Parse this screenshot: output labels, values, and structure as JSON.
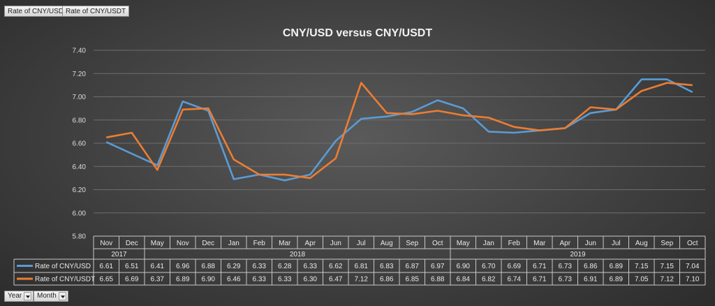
{
  "field_buttons": [
    "Rate of CNY/USD",
    "Rate of CNY/USDT"
  ],
  "axis_buttons": [
    "Year",
    "Month"
  ],
  "chart_data": {
    "type": "line",
    "title": "CNY/USD versus CNY/USDT",
    "categories": [
      "Nov",
      "Dec",
      "May",
      "Nov",
      "Dec",
      "Jan",
      "Feb",
      "Mar",
      "Apr",
      "Jun",
      "Jul",
      "Aug",
      "Sep",
      "Oct",
      "May",
      "Jan",
      "Feb",
      "Mar",
      "Apr",
      "Jun",
      "Jul",
      "Aug",
      "Sep",
      "Oct"
    ],
    "year_groups": [
      {
        "label": "2017",
        "start": 0,
        "end": 1
      },
      {
        "label": "2018",
        "start": 2,
        "end": 13
      },
      {
        "label": "2019",
        "start": 14,
        "end": 23
      }
    ],
    "series": [
      {
        "name": "Rate of CNY/USD",
        "color": "#5b9bd5",
        "values": [
          "6.61",
          "6.51",
          "6.41",
          "6.96",
          "6.88",
          "6.29",
          "6.33",
          "6.28",
          "6.33",
          "6.62",
          "6.81",
          "6.83",
          "6.87",
          "6.97",
          "6.90",
          "6.70",
          "6.69",
          "6.71",
          "6.73",
          "6.86",
          "6.89",
          "7.15",
          "7.15",
          "7.04"
        ]
      },
      {
        "name": "Rate of CNY/USDT",
        "color": "#ed7d31",
        "values": [
          "6.65",
          "6.69",
          "6.37",
          "6.89",
          "6.90",
          "6.46",
          "6.33",
          "6.33",
          "6.30",
          "6.47",
          "7.12",
          "6.86",
          "6.85",
          "6.88",
          "6.84",
          "6.82",
          "6.74",
          "6.71",
          "6.73",
          "6.91",
          "6.89",
          "7.05",
          "7.12",
          "7.10"
        ]
      }
    ],
    "yticks": [
      "7.40",
      "7.20",
      "7.00",
      "6.80",
      "6.60",
      "6.40",
      "6.20",
      "6.00",
      "5.80"
    ],
    "ylim": [
      5.8,
      7.4
    ],
    "grid": true,
    "legend": "data-table"
  }
}
